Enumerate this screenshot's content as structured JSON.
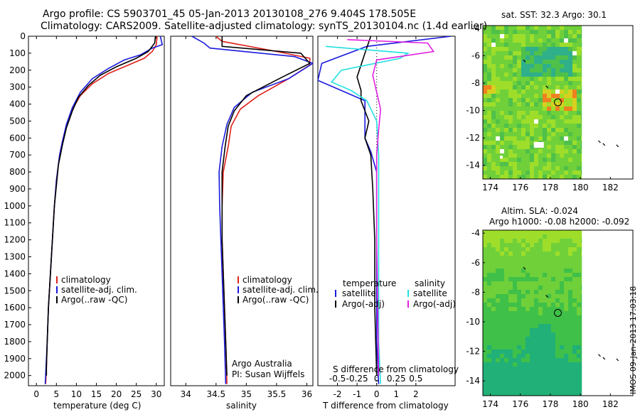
{
  "figure": {
    "title_line1": "Argo profile: CS 5903701_45 05-Jan-2013 20130108_276 9.404S 178.505E",
    "title_line2": "Climatology: CARS2009. Satellite-adjusted climatology: synTS_20130104.nc (1.4d earlier)",
    "footer_credit": "IMOS 09-Jan-2013 17:03:18",
    "credit_line1": "Argo Australia",
    "credit_line2": "PI: Susan Wijffels",
    "colors": {
      "red": "#e0201a",
      "blue": "#1a1adc",
      "black": "#000000",
      "cyan": "#22e0e0",
      "magenta": "#e020e0"
    }
  },
  "chart_data": [
    {
      "id": "temperature",
      "type": "line",
      "xlabel": "temperature (deg C)",
      "ylabel": "",
      "xlim": [
        -2,
        32
      ],
      "ylim": [
        2060,
        0
      ],
      "xticks": [
        0,
        5,
        10,
        15,
        20,
        25,
        30
      ],
      "yticks": [
        0,
        100,
        200,
        300,
        400,
        500,
        600,
        700,
        800,
        900,
        1000,
        1100,
        1200,
        1300,
        1400,
        1500,
        1600,
        1700,
        1800,
        1900,
        2000
      ],
      "legend": [
        "climatology",
        "satellite-adj. clim.",
        "Argo(..raw -QC)"
      ],
      "series": [
        {
          "name": "climatology",
          "color": "red",
          "points": [
            [
              30.2,
              0
            ],
            [
              30,
              50
            ],
            [
              29,
              90
            ],
            [
              27,
              130
            ],
            [
              22,
              180
            ],
            [
              18,
              220
            ],
            [
              14,
              280
            ],
            [
              11,
              350
            ],
            [
              9,
              430
            ],
            [
              7.5,
              530
            ],
            [
              6.5,
              620
            ],
            [
              5.8,
              700
            ],
            [
              5,
              850
            ],
            [
              4.5,
              1000
            ],
            [
              4,
              1200
            ],
            [
              3.5,
              1400
            ],
            [
              3,
              1600
            ],
            [
              2.7,
              1800
            ],
            [
              2.5,
              1950
            ],
            [
              2.3,
              2050
            ]
          ]
        },
        {
          "name": "satellite-adj. clim.",
          "color": "blue",
          "points": [
            [
              31,
              0
            ],
            [
              31.5,
              50
            ],
            [
              29,
              70
            ],
            [
              26,
              110
            ],
            [
              22,
              140
            ],
            [
              18,
              190
            ],
            [
              14,
              250
            ],
            [
              11,
              330
            ],
            [
              9,
              420
            ],
            [
              7.5,
              520
            ],
            [
              6.5,
              620
            ],
            [
              5.8,
              700
            ],
            [
              5,
              850
            ],
            [
              4.5,
              1000
            ],
            [
              4,
              1200
            ],
            [
              3.5,
              1400
            ],
            [
              3,
              1600
            ],
            [
              2.7,
              1800
            ],
            [
              2.4,
              1950
            ],
            [
              2.2,
              2050
            ]
          ]
        },
        {
          "name": "Argo(..raw -QC)",
          "color": "black",
          "points": [
            [
              29.8,
              0
            ],
            [
              29.6,
              40
            ],
            [
              28,
              90
            ],
            [
              25,
              130
            ],
            [
              20,
              180
            ],
            [
              16,
              230
            ],
            [
              13,
              290
            ],
            [
              10.5,
              360
            ],
            [
              9,
              440
            ],
            [
              7.5,
              540
            ],
            [
              6.5,
              640
            ],
            [
              5.5,
              760
            ],
            [
              5,
              880
            ],
            [
              4.5,
              1000
            ],
            [
              4,
              1200
            ],
            [
              3.5,
              1400
            ],
            [
              3,
              1600
            ],
            [
              2.7,
              1800
            ],
            [
              2.5,
              1950
            ],
            [
              2.5,
              2000
            ]
          ]
        }
      ]
    },
    {
      "id": "salinity",
      "type": "line",
      "xlabel": "salinity",
      "ylabel": "",
      "xlim": [
        33.75,
        36.1
      ],
      "ylim": [
        2060,
        0
      ],
      "xticks": [
        34,
        34.5,
        35,
        35.5,
        36
      ],
      "yticks": [],
      "legend": [
        "climatology",
        "satellite-adj. clim.",
        "Argo(..raw -QC)"
      ],
      "series": [
        {
          "name": "climatology",
          "color": "red",
          "points": [
            [
              34.5,
              0
            ],
            [
              34.6,
              30
            ],
            [
              35.5,
              90
            ],
            [
              36.05,
              130
            ],
            [
              36.05,
              170
            ],
            [
              35.7,
              250
            ],
            [
              35.2,
              350
            ],
            [
              34.9,
              430
            ],
            [
              34.75,
              530
            ],
            [
              34.7,
              650
            ],
            [
              34.62,
              800
            ],
            [
              34.6,
              1000
            ],
            [
              34.6,
              1200
            ],
            [
              34.62,
              1400
            ],
            [
              34.64,
              1600
            ],
            [
              34.66,
              1800
            ],
            [
              34.68,
              2050
            ]
          ]
        },
        {
          "name": "satellite-adj. clim.",
          "color": "blue",
          "points": [
            [
              34.1,
              0
            ],
            [
              34.3,
              40
            ],
            [
              34.4,
              70
            ],
            [
              35.8,
              120
            ],
            [
              36.1,
              160
            ],
            [
              35.7,
              250
            ],
            [
              35.1,
              330
            ],
            [
              34.8,
              420
            ],
            [
              34.68,
              520
            ],
            [
              34.6,
              650
            ],
            [
              34.55,
              800
            ],
            [
              34.56,
              1000
            ],
            [
              34.58,
              1200
            ],
            [
              34.6,
              1400
            ],
            [
              34.62,
              1600
            ],
            [
              34.64,
              1800
            ],
            [
              34.66,
              2050
            ]
          ]
        },
        {
          "name": "Argo(..raw -QC)",
          "color": "black",
          "points": [
            [
              34.6,
              0
            ],
            [
              34.6,
              60
            ],
            [
              35.9,
              100
            ],
            [
              36.05,
              160
            ],
            [
              35.6,
              240
            ],
            [
              35.0,
              350
            ],
            [
              34.8,
              440
            ],
            [
              34.7,
              530
            ],
            [
              34.65,
              650
            ],
            [
              34.6,
              800
            ],
            [
              34.6,
              1000
            ],
            [
              34.6,
              1200
            ],
            [
              34.62,
              1400
            ],
            [
              34.64,
              1600
            ],
            [
              34.66,
              1800
            ],
            [
              34.68,
              2000
            ]
          ]
        }
      ]
    },
    {
      "id": "difference",
      "type": "line",
      "xlabel": "T difference from climatology",
      "xlabel2": "S difference from climatology",
      "ylabel": "",
      "xlim": [
        -3,
        4
      ],
      "ylim": [
        2060,
        0
      ],
      "xticks": [
        -2,
        -1,
        0,
        1,
        2
      ],
      "xticks_top": [
        -0.5,
        -0.25,
        0,
        0.25,
        0.5
      ],
      "yticks": [],
      "legend_temperature_title": "temperature",
      "legend_salinity_title": "salinity",
      "legend_temperature": [
        "satellite",
        "Argo(-adj)"
      ],
      "legend_salinity": [
        "satellite",
        "Argo(-adj)"
      ],
      "series": [
        {
          "name": "T satellite",
          "color": "blue",
          "points": [
            [
              3.8,
              0
            ],
            [
              -0.5,
              60
            ],
            [
              -2.8,
              160
            ],
            [
              -3,
              260
            ],
            [
              -0.6,
              380
            ],
            [
              -0.6,
              480
            ],
            [
              -0.6,
              600
            ],
            [
              -0.3,
              680
            ],
            [
              0,
              800
            ],
            [
              0,
              1000
            ],
            [
              0,
              1400
            ],
            [
              0,
              1800
            ],
            [
              0.1,
              2050
            ]
          ]
        },
        {
          "name": "T Argo(-adj)",
          "color": "black",
          "points": [
            [
              -0.3,
              0
            ],
            [
              -0.6,
              100
            ],
            [
              -0.8,
              170
            ],
            [
              -1.0,
              240
            ],
            [
              -0.8,
              320
            ],
            [
              -0.8,
              380
            ],
            [
              -0.4,
              500
            ],
            [
              -0.6,
              600
            ],
            [
              -0.3,
              700
            ],
            [
              -0.2,
              900
            ],
            [
              -0.1,
              1200
            ],
            [
              -0.1,
              1600
            ],
            [
              0,
              2000
            ]
          ]
        },
        {
          "name": "S satellite",
          "color": "cyan",
          "points": [
            [
              -2.6,
              60
            ],
            [
              1.6,
              100
            ],
            [
              1.2,
              130
            ],
            [
              -1.8,
              200
            ],
            [
              -2.3,
              270
            ],
            [
              -1.3,
              320
            ],
            [
              -0.5,
              380
            ],
            [
              0,
              500
            ],
            [
              0.1,
              700
            ],
            [
              0.1,
              1000
            ],
            [
              0.1,
              1400
            ],
            [
              0.1,
              1800
            ],
            [
              0.2,
              2050
            ]
          ]
        },
        {
          "name": "S Argo(-adj)",
          "color": "magenta",
          "points": [
            [
              -1.5,
              20
            ],
            [
              2.6,
              40
            ],
            [
              2.9,
              90
            ],
            [
              0,
              140
            ],
            [
              -0.2,
              230
            ],
            [
              0,
              330
            ],
            [
              0.2,
              430
            ],
            [
              0.1,
              550
            ],
            [
              0,
              700
            ],
            [
              0,
              900
            ],
            [
              0,
              1200
            ],
            [
              0.05,
              1600
            ],
            [
              0.1,
              2000
            ]
          ]
        }
      ]
    },
    {
      "id": "sst_map",
      "type": "heatmap",
      "title": "sat. SST: 32.3 Argo: 30.1",
      "xlim": [
        173.5,
        183.5
      ],
      "ylim": [
        -15,
        -3.8
      ],
      "xticks": [
        174,
        176,
        178,
        180,
        182
      ],
      "yticks": [
        -4,
        -6,
        -8,
        -10,
        -12,
        -14
      ],
      "argo_position": [
        178.5,
        -9.4
      ]
    },
    {
      "id": "sla_map",
      "type": "heatmap",
      "title": "Altim. SLA: -0.024",
      "subtitle": "Argo h1000: -0.08 h2000: -0.092",
      "xlim": [
        173.5,
        183.5
      ],
      "ylim": [
        -15,
        -3.8
      ],
      "xticks": [
        174,
        176,
        178,
        180,
        182
      ],
      "yticks": [
        -4,
        -6,
        -8,
        -10,
        -12,
        -14
      ],
      "argo_position": [
        178.5,
        -9.4
      ]
    }
  ]
}
